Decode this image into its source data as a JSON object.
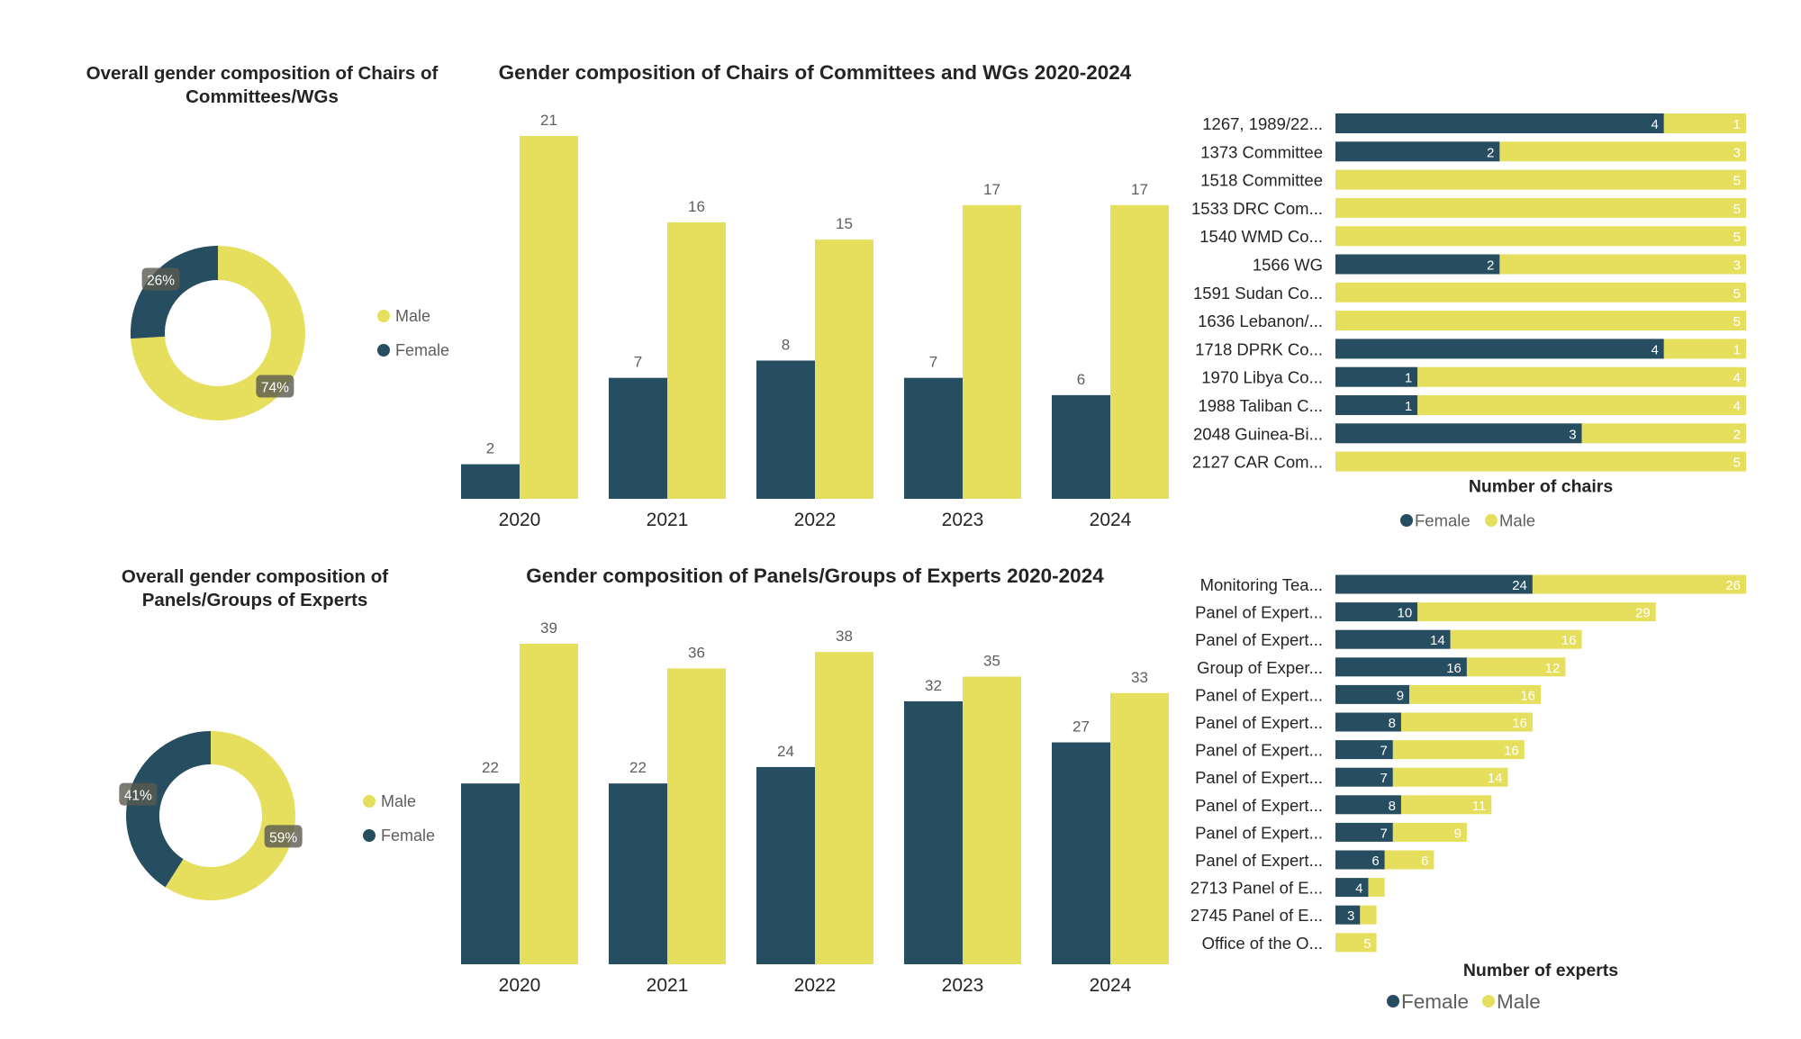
{
  "colors": {
    "female": "#264D60",
    "male": "#E6DF5E",
    "text": "#252423",
    "label": "#605E5C"
  },
  "chart_data": [
    {
      "id": "donut-chairs",
      "type": "pie",
      "title": "Overall gender composition of Chairs of Committees/WGs",
      "title_lines": [
        "Overall gender composition of Chairs of",
        "Committees/WGs"
      ],
      "slices": [
        {
          "name": "Male",
          "value": 74,
          "label": "74%"
        },
        {
          "name": "Female",
          "value": 26,
          "label": "26%"
        }
      ],
      "legend": [
        "Male",
        "Female"
      ]
    },
    {
      "id": "bars-chairs",
      "type": "bar",
      "title": "Gender composition of Chairs of Committees and WGs 2020-2024",
      "categories": [
        "2020",
        "2021",
        "2022",
        "2023",
        "2024"
      ],
      "series": [
        {
          "name": "Female",
          "values": [
            2,
            7,
            8,
            7,
            6
          ]
        },
        {
          "name": "Male",
          "values": [
            21,
            16,
            15,
            17,
            17
          ]
        }
      ],
      "ylim": [
        0,
        21
      ]
    },
    {
      "id": "hbars-chairs",
      "type": "bar",
      "orientation": "horizontal",
      "stacked": true,
      "xlabel": "Number of chairs",
      "categories": [
        "1267, 1989/22...",
        "1373 Committee",
        "1518 Committee",
        "1533 DRC Com...",
        "1540 WMD Co...",
        "1566 WG",
        "1591 Sudan Co...",
        "1636 Lebanon/...",
        "1718 DPRK Co...",
        "1970 Libya Co...",
        "1988 Taliban C...",
        "2048 Guinea-Bi...",
        "2127 CAR Com..."
      ],
      "series": [
        {
          "name": "Female",
          "values": [
            4,
            2,
            0,
            0,
            0,
            2,
            0,
            0,
            4,
            1,
            1,
            3,
            0
          ]
        },
        {
          "name": "Male",
          "values": [
            1,
            3,
            5,
            5,
            5,
            3,
            5,
            5,
            1,
            4,
            4,
            2,
            5
          ]
        }
      ],
      "xlim": [
        0,
        5
      ],
      "legend": [
        "Female",
        "Male"
      ]
    },
    {
      "id": "donut-experts",
      "type": "pie",
      "title": "Overall gender composition of Panels/Groups of Experts",
      "title_lines": [
        "Overall gender composition of",
        "Panels/Groups of Experts"
      ],
      "slices": [
        {
          "name": "Male",
          "value": 59,
          "label": "59%"
        },
        {
          "name": "Female",
          "value": 41,
          "label": "41%"
        }
      ],
      "legend": [
        "Male",
        "Female"
      ]
    },
    {
      "id": "bars-experts",
      "type": "bar",
      "title": "Gender composition of Panels/Groups of Experts 2020-2024",
      "categories": [
        "2020",
        "2021",
        "2022",
        "2023",
        "2024"
      ],
      "series": [
        {
          "name": "Female",
          "values": [
            22,
            22,
            24,
            32,
            27
          ]
        },
        {
          "name": "Male",
          "values": [
            39,
            36,
            38,
            35,
            33
          ]
        }
      ],
      "ylim": [
        0,
        39
      ]
    },
    {
      "id": "hbars-experts",
      "type": "bar",
      "orientation": "horizontal",
      "stacked": true,
      "xlabel": "Number of experts",
      "categories": [
        "Monitoring Tea...",
        "Panel of Expert...",
        "Panel of Expert...",
        "Group of Exper...",
        "Panel of Expert...",
        "Panel of Expert...",
        "Panel of Expert...",
        "Panel of Expert...",
        "Panel of Expert...",
        "Panel of Expert...",
        "Panel of Expert...",
        "2713 Panel of E...",
        "2745 Panel of E...",
        "Office of the O..."
      ],
      "series": [
        {
          "name": "Female",
          "values": [
            24,
            10,
            14,
            16,
            9,
            8,
            7,
            7,
            8,
            7,
            6,
            4,
            3,
            0
          ]
        },
        {
          "name": "Male",
          "values": [
            26,
            29,
            16,
            12,
            16,
            16,
            16,
            14,
            11,
            9,
            6,
            2,
            2,
            5
          ]
        }
      ],
      "hidden_labels": {
        "Male": [
          11,
          12
        ]
      },
      "xlim": [
        0,
        50
      ],
      "legend": [
        "Female",
        "Male"
      ]
    }
  ]
}
